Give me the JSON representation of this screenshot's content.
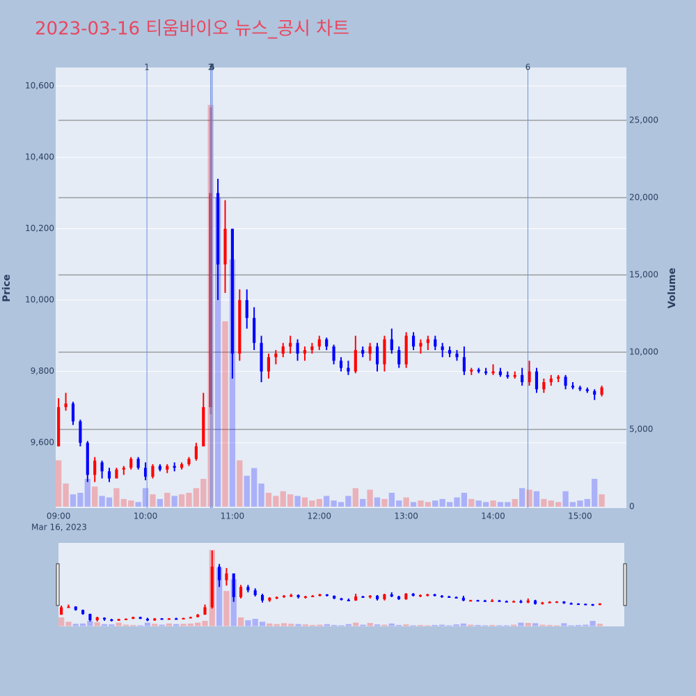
{
  "chart_data": {
    "type": "candlestick",
    "title": "2023-03-16 티움바이오 뉴스_공시 차트",
    "y_label": "Price",
    "y2_label": "Volume",
    "x_axis_date": "Mar 16, 2023",
    "increasing_color": "#ff0000",
    "decreasing_color": "#0000ff",
    "rangeslider": true,
    "grid": true,
    "x": [
      "09:00",
      "09:05",
      "09:10",
      "09:15",
      "09:20",
      "09:25",
      "09:30",
      "09:35",
      "09:40",
      "09:45",
      "09:50",
      "09:55",
      "10:00",
      "10:05",
      "10:10",
      "10:15",
      "10:20",
      "10:25",
      "10:30",
      "10:35",
      "10:40",
      "10:45",
      "10:50",
      "10:55",
      "11:00",
      "11:05",
      "11:10",
      "11:15",
      "11:20",
      "11:25",
      "11:30",
      "11:35",
      "11:40",
      "11:45",
      "11:50",
      "11:55",
      "12:00",
      "12:05",
      "12:10",
      "12:15",
      "12:20",
      "12:25",
      "12:30",
      "12:35",
      "12:40",
      "12:45",
      "12:50",
      "12:55",
      "13:00",
      "13:05",
      "13:10",
      "13:15",
      "13:20",
      "13:25",
      "13:30",
      "13:35",
      "13:40",
      "13:45",
      "13:50",
      "13:55",
      "14:00",
      "14:05",
      "14:10",
      "14:15",
      "14:20",
      "14:25",
      "14:30",
      "14:35",
      "14:40",
      "14:45",
      "14:50",
      "14:55",
      "15:00",
      "15:05",
      "15:10",
      "15:15"
    ],
    "open": [
      9590,
      9700,
      9710,
      9660,
      9600,
      9510,
      9545,
      9520,
      9500,
      9525,
      9530,
      9555,
      9530,
      9505,
      9535,
      9525,
      9535,
      9530,
      9540,
      9555,
      9590,
      9700,
      10300,
      10100,
      10200,
      9850,
      10000,
      9950,
      9880,
      9800,
      9840,
      9850,
      9870,
      9880,
      9850,
      9860,
      9870,
      9890,
      9870,
      9830,
      9810,
      9800,
      9860,
      9850,
      9870,
      9820,
      9890,
      9860,
      9820,
      9900,
      9870,
      9880,
      9890,
      9870,
      9860,
      9850,
      9840,
      9800,
      9805,
      9800,
      9795,
      9800,
      9790,
      9785,
      9790,
      9770,
      9800,
      9750,
      9770,
      9780,
      9785,
      9760,
      9755,
      9750,
      9745,
      9735
    ],
    "high": [
      9725,
      9740,
      9715,
      9665,
      9605,
      9560,
      9550,
      9530,
      9530,
      9535,
      9560,
      9560,
      9545,
      9540,
      9540,
      9540,
      9545,
      9545,
      9560,
      9600,
      9740,
      10540,
      10340,
      10280,
      10200,
      10030,
      10030,
      9980,
      9900,
      9850,
      9860,
      9880,
      9900,
      9890,
      9870,
      9880,
      9900,
      9895,
      9875,
      9840,
      9830,
      9900,
      9870,
      9880,
      9880,
      9900,
      9920,
      9870,
      9910,
      9910,
      9890,
      9900,
      9900,
      9880,
      9870,
      9860,
      9870,
      9810,
      9810,
      9810,
      9820,
      9810,
      9800,
      9800,
      9810,
      9830,
      9810,
      9780,
      9790,
      9790,
      9790,
      9770,
      9760,
      9755,
      9750,
      9760
    ],
    "low": [
      9590,
      9690,
      9650,
      9590,
      9490,
      9490,
      9500,
      9490,
      9500,
      9510,
      9525,
      9525,
      9495,
      9500,
      9520,
      9515,
      9520,
      9525,
      9535,
      9550,
      9590,
      9680,
      10000,
      10020,
      9780,
      9830,
      9920,
      9860,
      9770,
      9780,
      9820,
      9840,
      9850,
      9830,
      9830,
      9850,
      9860,
      9860,
      9820,
      9800,
      9790,
      9795,
      9840,
      9830,
      9800,
      9800,
      9850,
      9810,
      9810,
      9860,
      9850,
      9860,
      9860,
      9840,
      9840,
      9830,
      9790,
      9790,
      9795,
      9790,
      9790,
      9785,
      9780,
      9780,
      9760,
      9760,
      9740,
      9740,
      9760,
      9770,
      9750,
      9750,
      9745,
      9740,
      9720,
      9730
    ],
    "close": [
      9700,
      9710,
      9660,
      9600,
      9510,
      9550,
      9520,
      9500,
      9525,
      9530,
      9555,
      9530,
      9505,
      9535,
      9525,
      9535,
      9530,
      9540,
      9555,
      9590,
      9700,
      10300,
      10100,
      10200,
      9850,
      10000,
      9950,
      9880,
      9800,
      9840,
      9850,
      9870,
      9880,
      9850,
      9860,
      9870,
      9890,
      9870,
      9830,
      9810,
      9800,
      9860,
      9850,
      9870,
      9820,
      9890,
      9860,
      9820,
      9900,
      9870,
      9880,
      9890,
      9870,
      9860,
      9850,
      9840,
      9800,
      9805,
      9800,
      9795,
      9800,
      9790,
      9785,
      9790,
      9770,
      9800,
      9750,
      9770,
      9780,
      9785,
      9760,
      9755,
      9750,
      9745,
      9735,
      9755
    ],
    "volume": [
      3000,
      1500,
      800,
      900,
      1800,
      1300,
      700,
      600,
      1200,
      500,
      400,
      300,
      1200,
      800,
      500,
      900,
      700,
      800,
      900,
      1200,
      1800,
      26000,
      20000,
      12000,
      16000,
      3000,
      2000,
      2500,
      1500,
      900,
      700,
      1000,
      800,
      700,
      600,
      400,
      500,
      700,
      400,
      300,
      700,
      1200,
      500,
      1100,
      600,
      500,
      900,
      400,
      600,
      300,
      400,
      300,
      400,
      500,
      300,
      600,
      900,
      500,
      400,
      300,
      400,
      300,
      300,
      500,
      1200,
      1100,
      1000,
      500,
      400,
      300,
      1000,
      300,
      400,
      500,
      1800,
      800
    ],
    "xlim": [
      "08:58",
      "15:32"
    ],
    "xticks": [
      "09:00",
      "10:00",
      "11:00",
      "12:00",
      "13:00",
      "14:00",
      "15:00"
    ],
    "ylim": [
      9417,
      10652
    ],
    "yticks": [
      {
        "value": 9600,
        "label": "9,600"
      },
      {
        "value": 9800,
        "label": "9,800"
      },
      {
        "value": 10000,
        "label": "10,000"
      },
      {
        "value": 10200,
        "label": "10,200"
      },
      {
        "value": 10400,
        "label": "10,400"
      },
      {
        "value": 10600,
        "label": "10,600"
      }
    ],
    "y2lim": [
      -90,
      28420
    ],
    "y2ticks": [
      0,
      {
        "value": 5000,
        "label": "5,000"
      },
      {
        "value": 10000,
        "label": "10,000"
      },
      {
        "value": 15000,
        "label": "15,000"
      },
      {
        "value": 20000,
        "label": "20,000"
      },
      {
        "value": 25000,
        "label": "25,000"
      }
    ],
    "news_markers": [
      {
        "x": "10:01",
        "label": "1"
      },
      {
        "x": "10:45",
        "label": "2"
      },
      {
        "x": "10:45",
        "label": "3"
      },
      {
        "x": "10:46",
        "label": "4"
      },
      {
        "x": "10:46",
        "label": "5"
      },
      {
        "x": "14:24",
        "label": "6"
      }
    ]
  }
}
